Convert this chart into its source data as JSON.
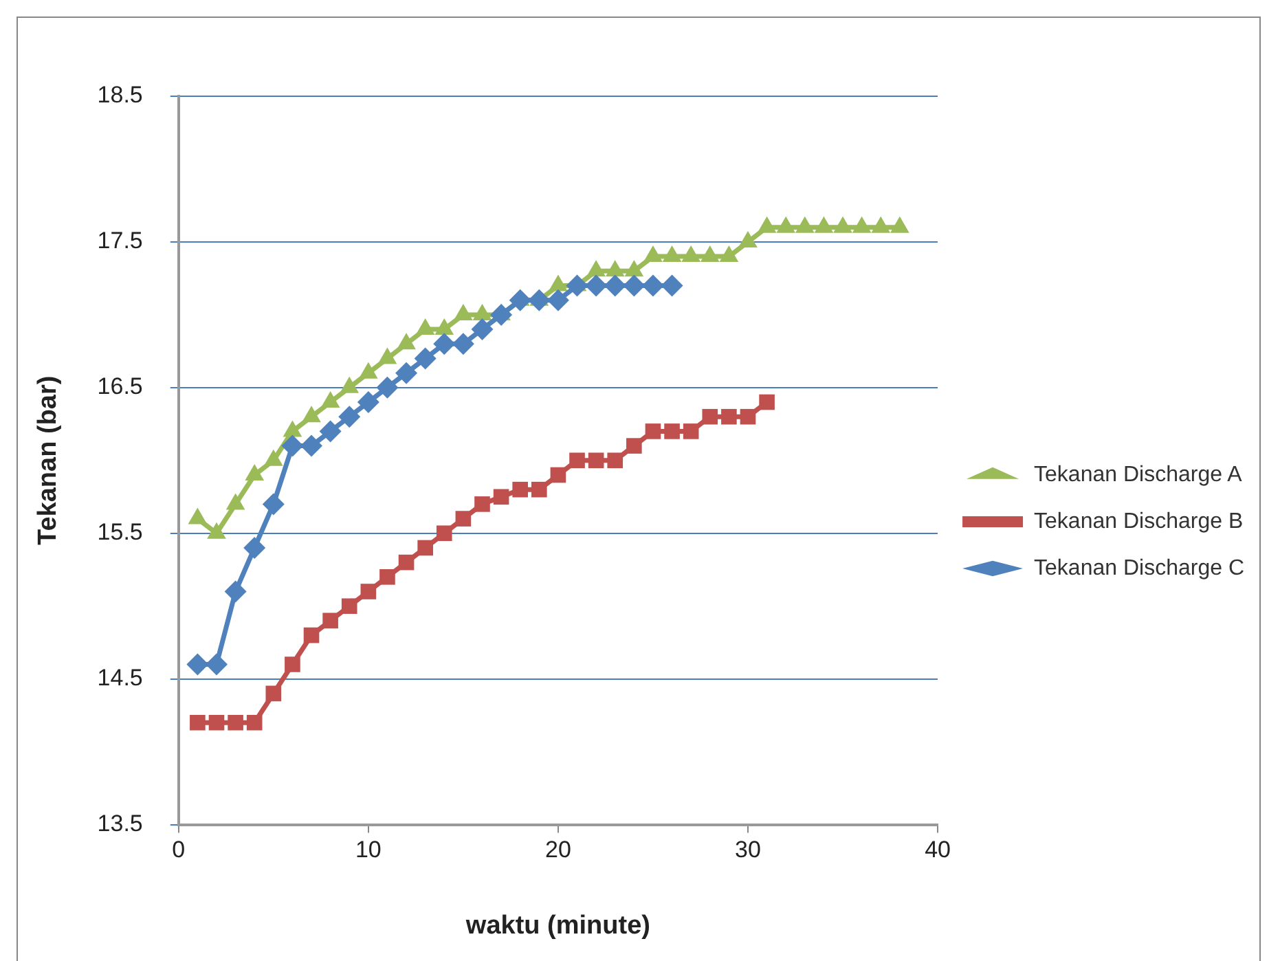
{
  "chart_data": {
    "type": "line",
    "xlabel": "waktu (minute)",
    "ylabel": "Tekanan (bar)",
    "xlim": [
      0,
      40
    ],
    "xticks": [
      0,
      10,
      20,
      30,
      40
    ],
    "ylim": [
      13.5,
      18.5
    ],
    "yticks": [
      13.5,
      14.5,
      15.5,
      16.5,
      17.5,
      18.5
    ],
    "grid": "y",
    "legend": "right",
    "series": [
      {
        "name": "Tekanan Discharge A",
        "color": "#9bbb59",
        "marker": "triangle",
        "x": [
          1,
          2,
          3,
          4,
          5,
          6,
          7,
          8,
          9,
          10,
          11,
          12,
          13,
          14,
          15,
          16,
          17,
          18,
          19,
          20,
          21,
          22,
          23,
          24,
          25,
          26,
          27,
          28,
          29,
          30,
          31,
          32,
          33,
          34,
          35,
          36,
          37,
          38
        ],
        "values": [
          15.6,
          15.5,
          15.7,
          15.9,
          16.0,
          16.2,
          16.3,
          16.4,
          16.5,
          16.6,
          16.7,
          16.8,
          16.9,
          16.9,
          17.0,
          17.0,
          17.0,
          17.1,
          17.1,
          17.2,
          17.2,
          17.3,
          17.3,
          17.3,
          17.4,
          17.4,
          17.4,
          17.4,
          17.4,
          17.5,
          17.6,
          17.6,
          17.6,
          17.6,
          17.6,
          17.6,
          17.6,
          17.6
        ]
      },
      {
        "name": "Tekanan Discharge B",
        "color": "#c0504d",
        "marker": "square",
        "x": [
          1,
          2,
          3,
          4,
          5,
          6,
          7,
          8,
          9,
          10,
          11,
          12,
          13,
          14,
          15,
          16,
          17,
          18,
          19,
          20,
          21,
          22,
          23,
          24,
          25,
          26,
          27,
          28,
          29,
          30,
          31
        ],
        "values": [
          14.2,
          14.2,
          14.2,
          14.2,
          14.4,
          14.6,
          14.8,
          14.9,
          15.0,
          15.1,
          15.2,
          15.3,
          15.4,
          15.5,
          15.6,
          15.7,
          15.75,
          15.8,
          15.8,
          15.9,
          16.0,
          16.0,
          16.0,
          16.1,
          16.2,
          16.2,
          16.2,
          16.3,
          16.3,
          16.3,
          16.4
        ]
      },
      {
        "name": "Tekanan Discharge C",
        "color": "#4f81bd",
        "marker": "diamond",
        "x": [
          1,
          2,
          3,
          4,
          5,
          6,
          7,
          8,
          9,
          10,
          11,
          12,
          13,
          14,
          15,
          16,
          17,
          18,
          19,
          20,
          21,
          22,
          23,
          24,
          25,
          26
        ],
        "values": [
          14.6,
          14.6,
          15.1,
          15.4,
          15.7,
          16.1,
          16.1,
          16.2,
          16.3,
          16.4,
          16.5,
          16.6,
          16.7,
          16.8,
          16.8,
          16.9,
          17.0,
          17.1,
          17.1,
          17.1,
          17.2,
          17.2,
          17.2,
          17.2,
          17.2,
          17.2
        ]
      }
    ]
  }
}
